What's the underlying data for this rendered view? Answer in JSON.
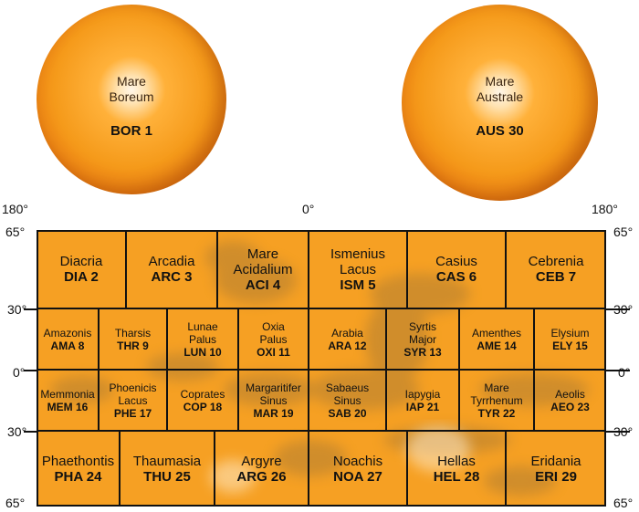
{
  "globes": [
    {
      "name_lines": [
        "Mare",
        "Boreum"
      ],
      "code": "BOR 1"
    },
    {
      "name_lines": [
        "Mare",
        "Australe"
      ],
      "code": "AUS 30"
    }
  ],
  "longitude_labels": {
    "left": "180°",
    "center": "0°",
    "right": "180°"
  },
  "latitude_labels": {
    "top": "65°",
    "upper": "30°",
    "equator": "0°",
    "lower": "30°",
    "bottom": "65°"
  },
  "regions": [
    {
      "id": "dia",
      "name_lines": [
        "Diacria"
      ],
      "code": "DIA 2"
    },
    {
      "id": "arc",
      "name_lines": [
        "Arcadia"
      ],
      "code": "ARC 3"
    },
    {
      "id": "aci",
      "name_lines": [
        "Mare",
        "Acidalium"
      ],
      "code": "ACI 4"
    },
    {
      "id": "ism",
      "name_lines": [
        "Ismenius",
        "Lacus"
      ],
      "code": "ISM 5"
    },
    {
      "id": "cas",
      "name_lines": [
        "Casius"
      ],
      "code": "CAS 6"
    },
    {
      "id": "ceb",
      "name_lines": [
        "Cebrenia"
      ],
      "code": "CEB 7"
    },
    {
      "id": "ama",
      "name_lines": [
        "Amazonis"
      ],
      "code": "AMA 8"
    },
    {
      "id": "thr",
      "name_lines": [
        "Tharsis"
      ],
      "code": "THR 9"
    },
    {
      "id": "lun",
      "name_lines": [
        "Lunae",
        "Palus"
      ],
      "code": "LUN 10"
    },
    {
      "id": "oxi",
      "name_lines": [
        "Oxia",
        "Palus"
      ],
      "code": "OXI 11"
    },
    {
      "id": "ara",
      "name_lines": [
        "Arabia"
      ],
      "code": "ARA 12"
    },
    {
      "id": "syr",
      "name_lines": [
        "Syrtis",
        "Major"
      ],
      "code": "SYR 13"
    },
    {
      "id": "ame",
      "name_lines": [
        "Amenthes"
      ],
      "code": "AME 14"
    },
    {
      "id": "ely",
      "name_lines": [
        "Elysium"
      ],
      "code": "ELY 15"
    },
    {
      "id": "mem",
      "name_lines": [
        "Memmonia"
      ],
      "code": "MEM 16"
    },
    {
      "id": "phe",
      "name_lines": [
        "Phoenicis",
        "Lacus"
      ],
      "code": "PHE 17"
    },
    {
      "id": "cop",
      "name_lines": [
        "Coprates"
      ],
      "code": "COP 18"
    },
    {
      "id": "mar",
      "name_lines": [
        "Margaritifer",
        "Sinus"
      ],
      "code": "MAR 19"
    },
    {
      "id": "sab",
      "name_lines": [
        "Sabaeus",
        "Sinus"
      ],
      "code": "SAB 20"
    },
    {
      "id": "iap",
      "name_lines": [
        "Iapygia"
      ],
      "code": "IAP 21"
    },
    {
      "id": "tyr",
      "name_lines": [
        "Mare",
        "Tyrrhenum"
      ],
      "code": "TYR 22"
    },
    {
      "id": "aeo",
      "name_lines": [
        "Aeolis"
      ],
      "code": "AEO 23"
    },
    {
      "id": "pha",
      "name_lines": [
        "Phaethontis"
      ],
      "code": "PHA 24"
    },
    {
      "id": "thu",
      "name_lines": [
        "Thaumasia"
      ],
      "code": "THU 25"
    },
    {
      "id": "arg",
      "name_lines": [
        "Argyre"
      ],
      "code": "ARG 26"
    },
    {
      "id": "noa",
      "name_lines": [
        "Noachis"
      ],
      "code": "NOA 27"
    },
    {
      "id": "hel",
      "name_lines": [
        "Hellas"
      ],
      "code": "HEL 28"
    },
    {
      "id": "eri",
      "name_lines": [
        "Eridania"
      ],
      "code": "ERI 29"
    }
  ],
  "colors": {
    "map_orange": "#f6a023",
    "grid_line": "#111111",
    "shading": "#8a6a3a"
  }
}
